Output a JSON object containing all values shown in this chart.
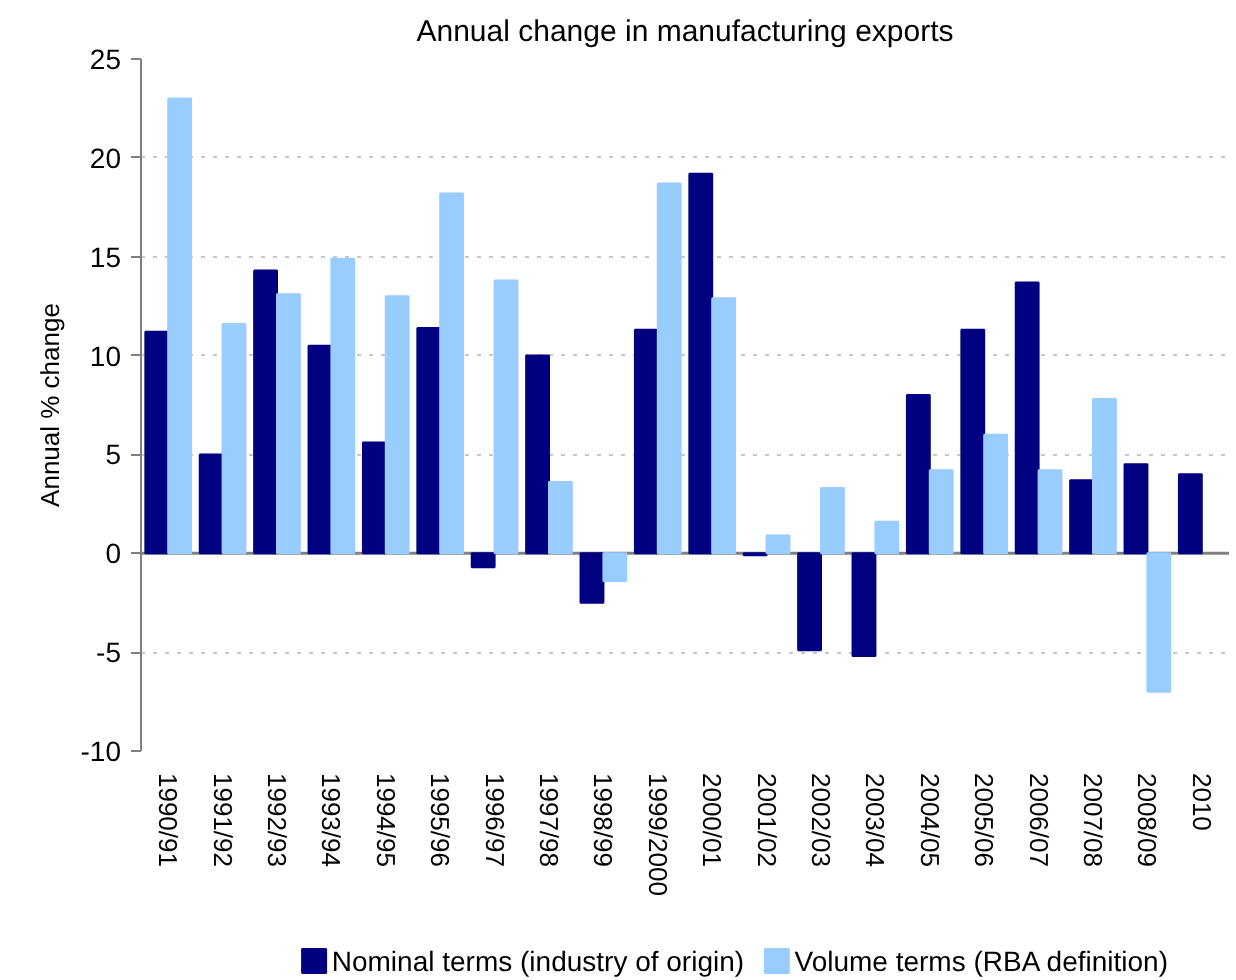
{
  "chart_data": {
    "type": "bar",
    "title": "Annual change in manufacturing exports",
    "ylabel": "Annual % change",
    "categories": [
      "1990/91",
      "1991/92",
      "1992/93",
      "1993/94",
      "1994/95",
      "1995/96",
      "1996/97",
      "1997/98",
      "1998/99",
      "1999/2000",
      "2000/01",
      "2001/02",
      "2002/03",
      "2003/04",
      "2004/05",
      "2005/06",
      "2006/07",
      "2007/08",
      "2008/09",
      "2010"
    ],
    "series": [
      {
        "name": "Nominal terms (industry of origin)",
        "color": "#000080",
        "values": [
          11.2,
          5.0,
          14.3,
          10.5,
          5.6,
          11.4,
          -0.7,
          10.0,
          -2.5,
          11.3,
          19.2,
          -0.1,
          -4.9,
          -5.2,
          8.0,
          11.3,
          13.7,
          3.7,
          4.5,
          4.0
        ]
      },
      {
        "name": "Volume terms (RBA definition)",
        "color": "#99ccff",
        "values": [
          23.0,
          11.6,
          13.1,
          14.9,
          13.0,
          18.2,
          13.8,
          3.6,
          -1.4,
          18.7,
          12.9,
          0.9,
          3.3,
          1.6,
          4.2,
          6.0,
          4.2,
          7.8,
          -7.0,
          null
        ]
      }
    ],
    "ylim": [
      -10,
      25
    ],
    "yticks": [
      -10,
      -5,
      0,
      5,
      10,
      15,
      20,
      25
    ],
    "grid": "y",
    "legend": "bottom"
  }
}
